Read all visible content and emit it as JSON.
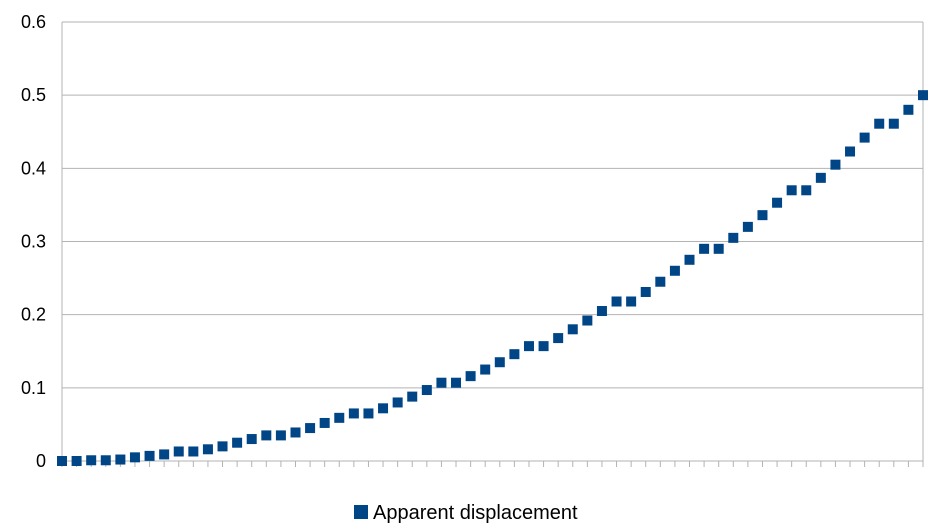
{
  "chart_data": {
    "type": "scatter",
    "title": "",
    "xlabel": "",
    "ylabel": "",
    "ylim": [
      0,
      0.6
    ],
    "yticks": [
      0,
      0.1,
      0.2,
      0.3,
      0.4,
      0.5,
      0.6
    ],
    "ytick_labels": [
      "0",
      "0.1",
      "0.2",
      "0.3",
      "0.4",
      "0.5",
      "0.6"
    ],
    "grid": "horizontal",
    "legend_position": "bottom",
    "marker": "square",
    "color": "#004586",
    "series": [
      {
        "name": "Apparent displacement",
        "x": [
          0,
          1,
          2,
          3,
          4,
          5,
          6,
          7,
          8,
          9,
          10,
          11,
          12,
          13,
          14,
          15,
          16,
          17,
          18,
          19,
          20,
          21,
          22,
          23,
          24,
          25,
          26,
          27,
          28,
          29,
          30,
          31,
          32,
          33,
          34,
          35,
          36,
          37,
          38,
          39,
          40,
          41,
          42,
          43,
          44,
          45,
          46,
          47,
          48,
          49,
          50,
          51,
          52,
          53,
          54,
          55,
          56,
          57,
          58,
          59
        ],
        "values": [
          0,
          0,
          0.001,
          0.001,
          0.002,
          0.005,
          0.007,
          0.009,
          0.013,
          0.013,
          0.016,
          0.02,
          0.025,
          0.03,
          0.035,
          0.035,
          0.039,
          0.045,
          0.052,
          0.059,
          0.065,
          0.065,
          0.072,
          0.08,
          0.088,
          0.097,
          0.107,
          0.107,
          0.116,
          0.125,
          0.135,
          0.146,
          0.157,
          0.157,
          0.168,
          0.18,
          0.192,
          0.205,
          0.218,
          0.218,
          0.231,
          0.245,
          0.26,
          0.275,
          0.29,
          0.29,
          0.305,
          0.32,
          0.336,
          0.353,
          0.37,
          0.37,
          0.387,
          0.405,
          0.423,
          0.442,
          0.461,
          0.461,
          0.48,
          0.5
        ]
      }
    ]
  }
}
